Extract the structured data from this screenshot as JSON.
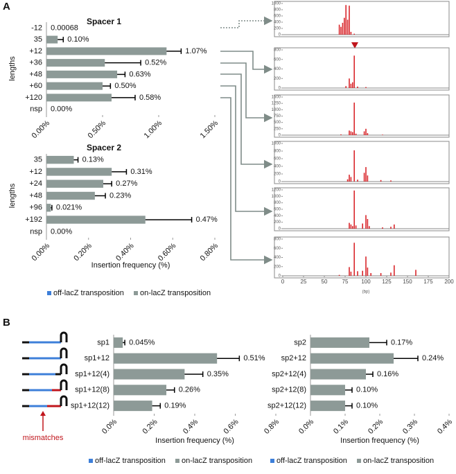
{
  "panels": [
    "A",
    "B"
  ],
  "schematic": {
    "label": "mismatches"
  },
  "chart_data": [
    {
      "type": "hbar",
      "title": "Spacer 1",
      "ylabel": "lengths",
      "categories": [
        "-12",
        "35",
        "+12",
        "+36",
        "+48",
        "+60",
        "+120",
        "nsp"
      ],
      "values": [
        0.00068,
        0.1,
        1.07,
        0.52,
        0.63,
        0.5,
        0.58,
        0.0
      ],
      "errors": [
        0,
        0.05,
        0.13,
        0.32,
        0.07,
        0.07,
        0.21,
        0
      ],
      "value_labels": [
        "0.00068",
        "0.10%",
        "1.07%",
        "0.52%",
        "0.63%",
        "0.50%",
        "0.58%",
        "0.00%"
      ],
      "color": "#8d9a97",
      "xlim": [
        0,
        1.5
      ],
      "xticks": [
        {
          "value": 0,
          "label": "0.00%"
        },
        {
          "value": 0.5,
          "label": "0.50%"
        },
        {
          "value": 1.0,
          "label": "1.00%"
        },
        {
          "value": 1.5,
          "label": "1.50%"
        }
      ]
    },
    {
      "type": "hbar",
      "title": "Spacer 2",
      "ylabel": "lengths",
      "xlabel": "Insertion frequency (%)",
      "categories": [
        "35",
        "+12",
        "+24",
        "+48",
        "+96",
        "+192",
        "nsp"
      ],
      "series": [
        {
          "name": "off-lacZ transposition",
          "color": "#3d7fd9",
          "values": [
            0,
            0,
            0,
            0,
            0,
            0,
            0
          ]
        },
        {
          "name": "on-lacZ transposition",
          "color": "#8d9a97",
          "values": [
            0.13,
            0.31,
            0.27,
            0.23,
            0.021,
            0.47,
            0.0
          ],
          "errors": [
            0.02,
            0.07,
            0.04,
            0.05,
            0.005,
            0.22,
            0
          ],
          "value_labels": [
            "0.13%",
            "0.31%",
            "0.27%",
            "0.23%",
            "0.021%",
            "0.47%",
            "0.00%"
          ]
        }
      ],
      "xlim": [
        0,
        0.8
      ],
      "xticks": [
        {
          "value": 0,
          "label": "0.00%"
        },
        {
          "value": 0.2,
          "label": "0.20%"
        },
        {
          "value": 0.4,
          "label": "0.40%"
        },
        {
          "value": 0.6,
          "label": "0.60%"
        },
        {
          "value": 0.8,
          "label": "0.80%"
        }
      ],
      "legend": "bottom"
    },
    {
      "type": "hist",
      "color": "#d9262b",
      "xlim": [
        0,
        200
      ],
      "ylim": [
        0,
        1000
      ],
      "yticks": [
        0,
        200,
        400,
        600,
        800,
        1000
      ],
      "x": [
        68,
        70,
        72,
        74,
        76,
        78,
        80,
        82,
        86
      ],
      "values": [
        320,
        250,
        380,
        540,
        950,
        480,
        930,
        90,
        30
      ]
    },
    {
      "type": "hist",
      "color": "#d9262b",
      "xlim": [
        0,
        200
      ],
      "ylim": [
        0,
        800
      ],
      "yticks": [
        0,
        200,
        400,
        600,
        800
      ],
      "x": [
        76,
        80,
        82,
        84,
        86,
        90,
        100
      ],
      "values": [
        40,
        200,
        90,
        120,
        680,
        30,
        20
      ]
    },
    {
      "type": "hist",
      "color": "#d9262b",
      "xlim": [
        0,
        200
      ],
      "ylim": [
        0,
        1500
      ],
      "yticks": [
        0,
        250,
        500,
        750,
        1000,
        1250,
        1500
      ],
      "x": [
        70,
        80,
        82,
        84,
        86,
        88,
        98,
        100,
        102,
        120
      ],
      "values": [
        30,
        180,
        150,
        120,
        1280,
        60,
        150,
        250,
        80,
        20
      ]
    },
    {
      "type": "hist",
      "color": "#d9262b",
      "xlim": [
        0,
        200
      ],
      "ylim": [
        0,
        1000
      ],
      "yticks": [
        0,
        200,
        400,
        600,
        800,
        1000
      ],
      "x": [
        78,
        80,
        82,
        86,
        90,
        98,
        100,
        102,
        118,
        130
      ],
      "values": [
        60,
        180,
        120,
        820,
        50,
        230,
        380,
        160,
        40,
        30
      ]
    },
    {
      "type": "hist",
      "color": "#d9262b",
      "xlim": [
        0,
        200
      ],
      "ylim": [
        0,
        1200
      ],
      "yticks": [
        0,
        200,
        400,
        600,
        800,
        1000,
        1200
      ],
      "x": [
        80,
        82,
        84,
        86,
        88,
        96,
        100,
        102,
        104,
        120,
        130,
        134
      ],
      "values": [
        180,
        130,
        80,
        1180,
        100,
        160,
        420,
        300,
        80,
        40,
        60,
        130
      ]
    },
    {
      "type": "hist",
      "color": "#d9262b",
      "xlim": [
        0,
        200
      ],
      "ylim": [
        0,
        800
      ],
      "yticks": [
        0,
        200,
        400,
        600,
        800
      ],
      "xticks": [
        0,
        25,
        50,
        75,
        100,
        125,
        150,
        175,
        200
      ],
      "xlabel": "(bp)",
      "x": [
        68,
        80,
        82,
        86,
        90,
        96,
        100,
        102,
        106,
        118,
        130,
        134,
        160
      ],
      "values": [
        20,
        190,
        90,
        720,
        100,
        110,
        420,
        180,
        60,
        60,
        70,
        230,
        130
      ]
    },
    {
      "type": "hbar",
      "xlabel": "Insertion frequency (%)",
      "categories": [
        "sp1",
        "sp1+12",
        "sp1+12(4)",
        "sp1+12(8)",
        "sp1+12(12)"
      ],
      "series": [
        {
          "name": "off-lacZ transposition",
          "color": "#3d7fd9",
          "values": [
            0,
            0,
            0,
            0,
            0
          ]
        },
        {
          "name": "on-lacZ transposition",
          "color": "#8d9a97",
          "values": [
            0.045,
            0.51,
            0.35,
            0.26,
            0.19
          ],
          "errors": [
            0.01,
            0.11,
            0.09,
            0.04,
            0.04
          ],
          "value_labels": [
            "0.045%",
            "0.51%",
            "0.35%",
            "0.26%",
            "0.19%"
          ]
        }
      ],
      "xlim": [
        0,
        0.8
      ],
      "xticks": [
        {
          "value": 0,
          "label": "0.0%"
        },
        {
          "value": 0.2,
          "label": "0.2%"
        },
        {
          "value": 0.4,
          "label": "0.4%"
        },
        {
          "value": 0.6,
          "label": "0.6%"
        },
        {
          "value": 0.8,
          "label": "0.8%"
        }
      ],
      "legend": "bottom"
    },
    {
      "type": "hbar",
      "xlabel": "Insertion frequency (%)",
      "categories": [
        "sp2",
        "sp2+12",
        "sp2+12(4)",
        "sp2+12(8)",
        "sp2+12(12)"
      ],
      "series": [
        {
          "name": "off-lacZ transposition",
          "color": "#3d7fd9",
          "values": [
            0,
            0,
            0,
            0,
            0
          ]
        },
        {
          "name": "on-lacZ transposition",
          "color": "#8d9a97",
          "values": [
            0.17,
            0.24,
            0.16,
            0.1,
            0.1
          ],
          "errors": [
            0.05,
            0.07,
            0.02,
            0.02,
            0.02
          ],
          "value_labels": [
            "0.17%",
            "0.24%",
            "0.16%",
            "0.10%",
            "0.10%"
          ]
        }
      ],
      "xlim": [
        0,
        0.4
      ],
      "xticks": [
        {
          "value": 0,
          "label": "0.0%"
        },
        {
          "value": 0.1,
          "label": "0.1%"
        },
        {
          "value": 0.2,
          "label": "0.2%"
        },
        {
          "value": 0.3,
          "label": "0.3%"
        },
        {
          "value": 0.4,
          "label": "0.4%"
        }
      ],
      "legend": "bottom"
    }
  ]
}
